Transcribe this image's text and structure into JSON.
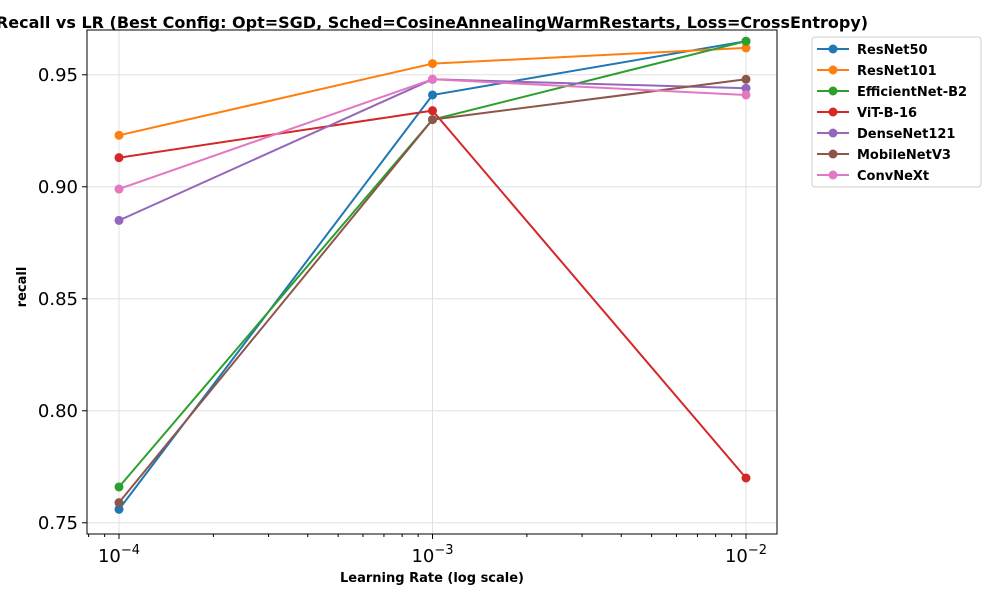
{
  "chart_data": {
    "type": "line",
    "title": "Recall vs LR (Best Config: Opt=SGD, Sched=CosineAnnealingWarmRestarts, Loss=CrossEntropy)",
    "xlabel": "Learning Rate (log scale)",
    "ylabel": "recall",
    "x_scale": "log",
    "x": [
      0.0001,
      0.001,
      0.01
    ],
    "x_tick_labels": [
      {
        "base": "10",
        "exp": "−4"
      },
      {
        "base": "10",
        "exp": "−3"
      },
      {
        "base": "10",
        "exp": "−2"
      }
    ],
    "y_ticks": [
      "0.75",
      "0.80",
      "0.85",
      "0.90",
      "0.95"
    ],
    "ylim": [
      0.745,
      0.97
    ],
    "grid": true,
    "legend_position": "outside-top-right",
    "series": [
      {
        "name": "ResNet50",
        "color": "#1f77b4",
        "values": [
          0.756,
          0.941,
          0.965
        ]
      },
      {
        "name": "ResNet101",
        "color": "#ff7f0e",
        "values": [
          0.923,
          0.955,
          0.962
        ]
      },
      {
        "name": "EfficientNet-B2",
        "color": "#2ca02c",
        "values": [
          0.766,
          0.93,
          0.965
        ]
      },
      {
        "name": "ViT-B-16",
        "color": "#d62728",
        "values": [
          0.913,
          0.934,
          0.77
        ]
      },
      {
        "name": "DenseNet121",
        "color": "#9467bd",
        "values": [
          0.885,
          0.948,
          0.944
        ]
      },
      {
        "name": "MobileNetV3",
        "color": "#8c564b",
        "values": [
          0.759,
          0.93,
          0.948
        ]
      },
      {
        "name": "ConvNeXt",
        "color": "#e377c2",
        "values": [
          0.899,
          0.948,
          0.941
        ]
      }
    ]
  }
}
